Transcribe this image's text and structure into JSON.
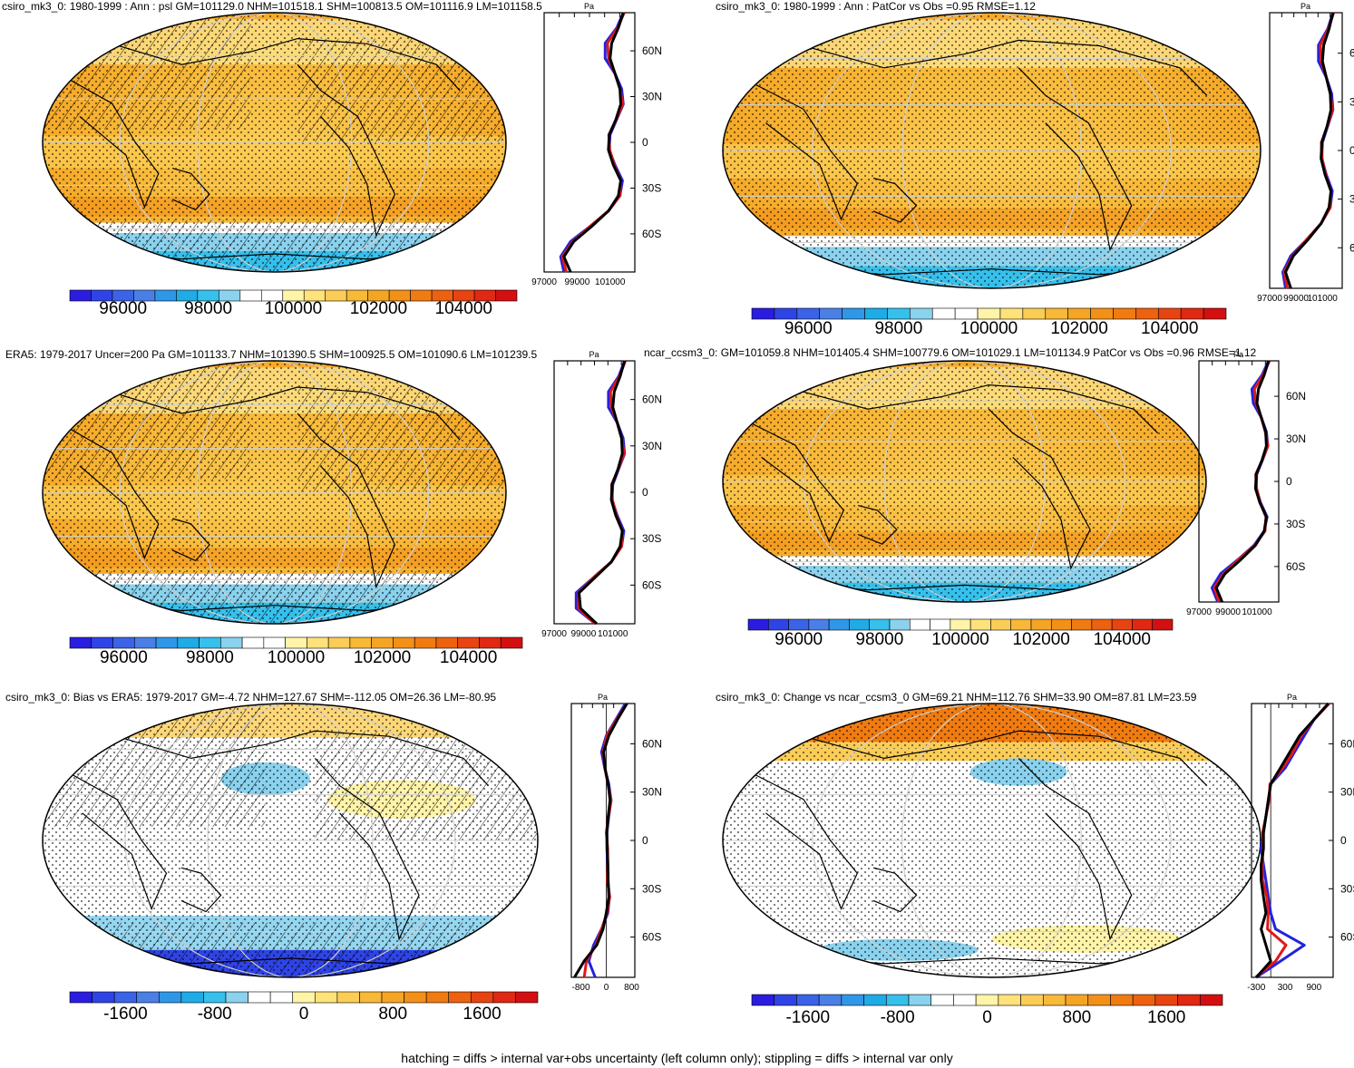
{
  "footnote": "hatching = diffs > internal var+obs uncertainty (left column only); stippling = diffs > internal var only",
  "zonal_unit": "Pa",
  "lat_labels": [
    "60N",
    "30N",
    "0",
    "30S",
    "60S"
  ],
  "colors": {
    "profile_model": "#2222dd",
    "profile_alt": "#e01818",
    "profile_ref": "#000000"
  },
  "abs_colorbar": {
    "labels": [
      "96000",
      "98000",
      "100000",
      "102000",
      "104000"
    ],
    "colors": [
      "#2a1de0",
      "#2f44e6",
      "#3a63e8",
      "#4a7fe6",
      "#2f97e8",
      "#1fabe6",
      "#36c0ec",
      "#8ad2ee",
      "#ffffff",
      "#ffffff",
      "#fff4a8",
      "#ffe27a",
      "#fccd56",
      "#f8b838",
      "#f5a524",
      "#f39018",
      "#f07b10",
      "#ec6210",
      "#e84412",
      "#e02812",
      "#d40f12"
    ]
  },
  "diff_colorbar": {
    "labels": [
      "-1600",
      "-800",
      "0",
      "800",
      "1600"
    ],
    "colors": [
      "#2a1de0",
      "#2f44e6",
      "#3a63e8",
      "#4a7fe6",
      "#2f97e8",
      "#1fabe6",
      "#36c0ec",
      "#8ad2ee",
      "#ffffff",
      "#ffffff",
      "#fff4a8",
      "#ffe27a",
      "#fccd56",
      "#f8b838",
      "#f5a524",
      "#f39018",
      "#f07b10",
      "#ec6210",
      "#e84412",
      "#e02812",
      "#d40f12"
    ]
  },
  "chart_data": [
    {
      "type": "heatmap",
      "title": "csiro_mk3_0: 1980-1999 : Ann : psl GM=101129.0 NHM=101518.1 SHM=100813.5 OM=101116.9 LM=101158.5",
      "variable": "psl",
      "field": "absolute",
      "zonal_ticks": [
        "97000",
        "99000",
        "101000"
      ],
      "zonal_range": [
        97000,
        102500
      ],
      "lat": [
        -85,
        -75,
        -65,
        -55,
        -45,
        -35,
        -25,
        -15,
        -5,
        5,
        15,
        25,
        35,
        45,
        55,
        65,
        75,
        85
      ],
      "zonal_mean_model": [
        98200,
        98000,
        98600,
        99800,
        100900,
        101600,
        101750,
        101300,
        100950,
        101000,
        101400,
        101800,
        101700,
        101300,
        100700,
        100700,
        101400,
        101800
      ],
      "zonal_mean_ref": [
        98600,
        98200,
        98800,
        99900,
        100900,
        101500,
        101650,
        101200,
        100900,
        100950,
        101350,
        101650,
        101600,
        101300,
        101000,
        101100,
        101500,
        101800
      ]
    },
    {
      "type": "heatmap",
      "title": "csiro_mk3_0: 1980-1999 : Ann : PatCor vs Obs =0.95 RMSE=1.12",
      "variable": "psl",
      "field": "absolute",
      "zonal_ticks": [
        "97000",
        "99000",
        "101000"
      ],
      "zonal_range": [
        97000,
        102500
      ],
      "lat": [
        -85,
        -75,
        -65,
        -55,
        -45,
        -35,
        -25,
        -15,
        -5,
        5,
        15,
        25,
        35,
        45,
        55,
        65,
        75,
        85
      ],
      "zonal_mean_model": [
        98200,
        98000,
        98600,
        99800,
        100900,
        101600,
        101750,
        101300,
        100950,
        101000,
        101400,
        101800,
        101700,
        101300,
        100700,
        100700,
        101400,
        101800
      ],
      "zonal_mean_ref": [
        98600,
        98200,
        98800,
        99900,
        100900,
        101500,
        101650,
        101200,
        100900,
        100950,
        101350,
        101650,
        101600,
        101300,
        101000,
        101100,
        101500,
        101800
      ]
    },
    {
      "type": "heatmap",
      "title": "ERA5: 1979-2017 Uncer=200 Pa GM=101133.7 NHM=101390.5 SHM=100925.5 OM=101090.6 LM=101239.5",
      "variable": "psl",
      "field": "absolute",
      "zonal_ticks": [
        "97000",
        "99000",
        "101000"
      ],
      "zonal_range": [
        97000,
        102500
      ],
      "lat": [
        -85,
        -75,
        -65,
        -55,
        -45,
        -35,
        -25,
        -15,
        -5,
        5,
        15,
        25,
        35,
        45,
        55,
        65,
        75,
        85
      ],
      "zonal_mean_model": [
        99800,
        98500,
        98500,
        99700,
        100900,
        101600,
        101750,
        101300,
        100950,
        101000,
        101400,
        101800,
        101700,
        101300,
        100700,
        100700,
        101400,
        101800
      ],
      "zonal_mean_ref": [
        99900,
        98800,
        98700,
        99800,
        100900,
        101500,
        101650,
        101200,
        100900,
        100950,
        101350,
        101650,
        101600,
        101300,
        101000,
        101100,
        101500,
        101800
      ]
    },
    {
      "type": "heatmap",
      "title": "ncar_ccsm3_0: GM=101059.8 NHM=101405.4 SHM=100779.6 OM=101029.1 LM=101134.9 PatCor vs Obs =0.96 RMSE=1.12",
      "variable": "psl",
      "field": "absolute",
      "zonal_ticks": [
        "97000",
        "99000",
        "101000"
      ],
      "zonal_range": [
        97000,
        102500
      ],
      "lat": [
        -85,
        -75,
        -65,
        -55,
        -45,
        -35,
        -25,
        -15,
        -5,
        5,
        15,
        25,
        35,
        45,
        55,
        65,
        75,
        85
      ],
      "zonal_mean_model": [
        98300,
        97900,
        98500,
        99700,
        100800,
        101500,
        101700,
        101250,
        100950,
        100980,
        101380,
        101750,
        101650,
        101300,
        100750,
        100650,
        101350,
        101800
      ],
      "zonal_mean_ref": [
        98600,
        98200,
        98800,
        99900,
        100900,
        101500,
        101650,
        101200,
        100900,
        100950,
        101350,
        101650,
        101600,
        101300,
        101000,
        101100,
        101500,
        101800
      ]
    },
    {
      "type": "heatmap",
      "title": "csiro_mk3_0: Bias vs ERA5: 1979-2017 GM=-4.72 NHM=127.67 SHM=-112.05 OM=26.36 LM=-80.95",
      "variable": "psl",
      "field": "difference",
      "zonal_ticks": [
        "-800",
        "0",
        "800"
      ],
      "zonal_range": [
        -1100,
        900
      ],
      "lat": [
        -85,
        -75,
        -65,
        -55,
        -45,
        -35,
        -25,
        -15,
        -5,
        5,
        15,
        25,
        35,
        45,
        55,
        65,
        75,
        85
      ],
      "zonal_mean_model": [
        -350,
        -550,
        -400,
        -150,
        50,
        100,
        50,
        40,
        20,
        20,
        80,
        150,
        80,
        -50,
        -150,
        0,
        300,
        600
      ],
      "zonal_mean_ref": [
        -1000,
        -700,
        -300,
        -100,
        0,
        80,
        60,
        50,
        30,
        20,
        60,
        120,
        60,
        -40,
        -80,
        80,
        350,
        650
      ]
    },
    {
      "type": "heatmap",
      "title": "csiro_mk3_0: Change vs ncar_ccsm3_0 GM=69.21 NHM=112.76 SHM=33.90 OM=87.81 LM=23.59",
      "variable": "psl",
      "field": "difference",
      "zonal_ticks": [
        "-300",
        "300",
        "900"
      ],
      "zonal_range": [
        -400,
        1300
      ],
      "lat": [
        -85,
        -75,
        -65,
        -55,
        -45,
        -35,
        -25,
        -15,
        -5,
        5,
        15,
        25,
        35,
        45,
        55,
        65,
        75,
        85
      ],
      "zonal_mean_model": [
        -300,
        200,
        700,
        100,
        0,
        -50,
        -100,
        -150,
        -200,
        -150,
        -100,
        -50,
        0,
        300,
        500,
        700,
        900,
        1200
      ],
      "zonal_mean_ref": [
        -300,
        0,
        -100,
        -200,
        -100,
        -150,
        -200,
        -200,
        -150,
        -150,
        -100,
        -50,
        0,
        200,
        400,
        600,
        900,
        1200
      ]
    }
  ]
}
